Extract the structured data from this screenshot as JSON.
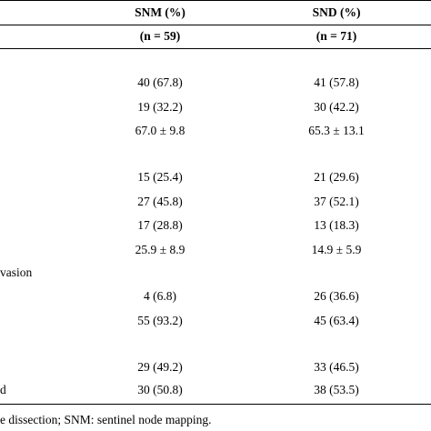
{
  "columns": {
    "snm": {
      "label": "SNM (%)",
      "n": "(n = 59)"
    },
    "snd": {
      "label": "SND (%)",
      "n": "(n = 71)"
    }
  },
  "rows": [
    {
      "label": "",
      "snm": "40 (67.8)",
      "snd": "41 (57.8)"
    },
    {
      "label": "",
      "snm": "19 (32.2)",
      "snd": "30 (42.2)"
    },
    {
      "label": "",
      "snm": "67.0 ± 9.8",
      "snd": "65.3 ± 13.1"
    },
    {
      "label": "",
      "snm": "15 (25.4)",
      "snd": "21 (29.6)"
    },
    {
      "label": "",
      "snm": "27 (45.8)",
      "snd": "37 (52.1)"
    },
    {
      "label": "",
      "snm": "17 (28.8)",
      "snd": "13 (18.3)"
    },
    {
      "label": "",
      "snm": "25.9 ± 8.9",
      "snd": "14.9 ± 5.9"
    },
    {
      "label": "vasion",
      "snm": "",
      "snd": ""
    },
    {
      "label": "",
      "snm": "4 (6.8)",
      "snd": "26 (36.6)"
    },
    {
      "label": "",
      "snm": "55 (93.2)",
      "snd": "45 (63.4)"
    },
    {
      "label": "",
      "snm": "29 (49.2)",
      "snd": "33 (46.5)"
    },
    {
      "label": "d",
      "snm": "30 (50.8)",
      "snd": "38 (53.5)"
    }
  ],
  "footnote": "e dissection; SNM: sentinel node mapping."
}
